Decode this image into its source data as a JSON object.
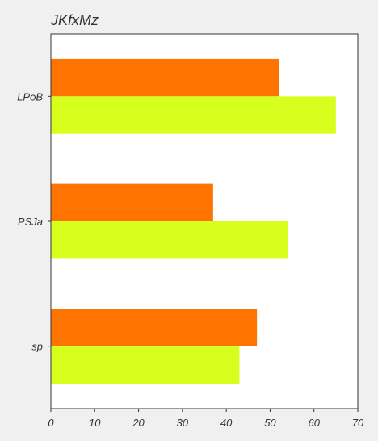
{
  "chart_data": {
    "type": "bar",
    "orientation": "horizontal",
    "title": "JKfxMz",
    "categories": [
      "LPoB",
      "PSJa",
      "sp"
    ],
    "series": [
      {
        "values": [
          52,
          37,
          47
        ],
        "color": "#ff7400"
      },
      {
        "values": [
          65,
          54,
          43
        ],
        "color": "#d7ff1e"
      }
    ],
    "xlim": [
      0,
      70
    ],
    "xticks": [
      "0",
      "10",
      "20",
      "30",
      "40",
      "50",
      "60",
      "70"
    ],
    "xlabel": "",
    "ylabel": "",
    "grid": false,
    "legend": "none"
  },
  "colors": {
    "background": "#f0f0f0",
    "plot_background": "#ffffff",
    "axis": "#333333"
  }
}
